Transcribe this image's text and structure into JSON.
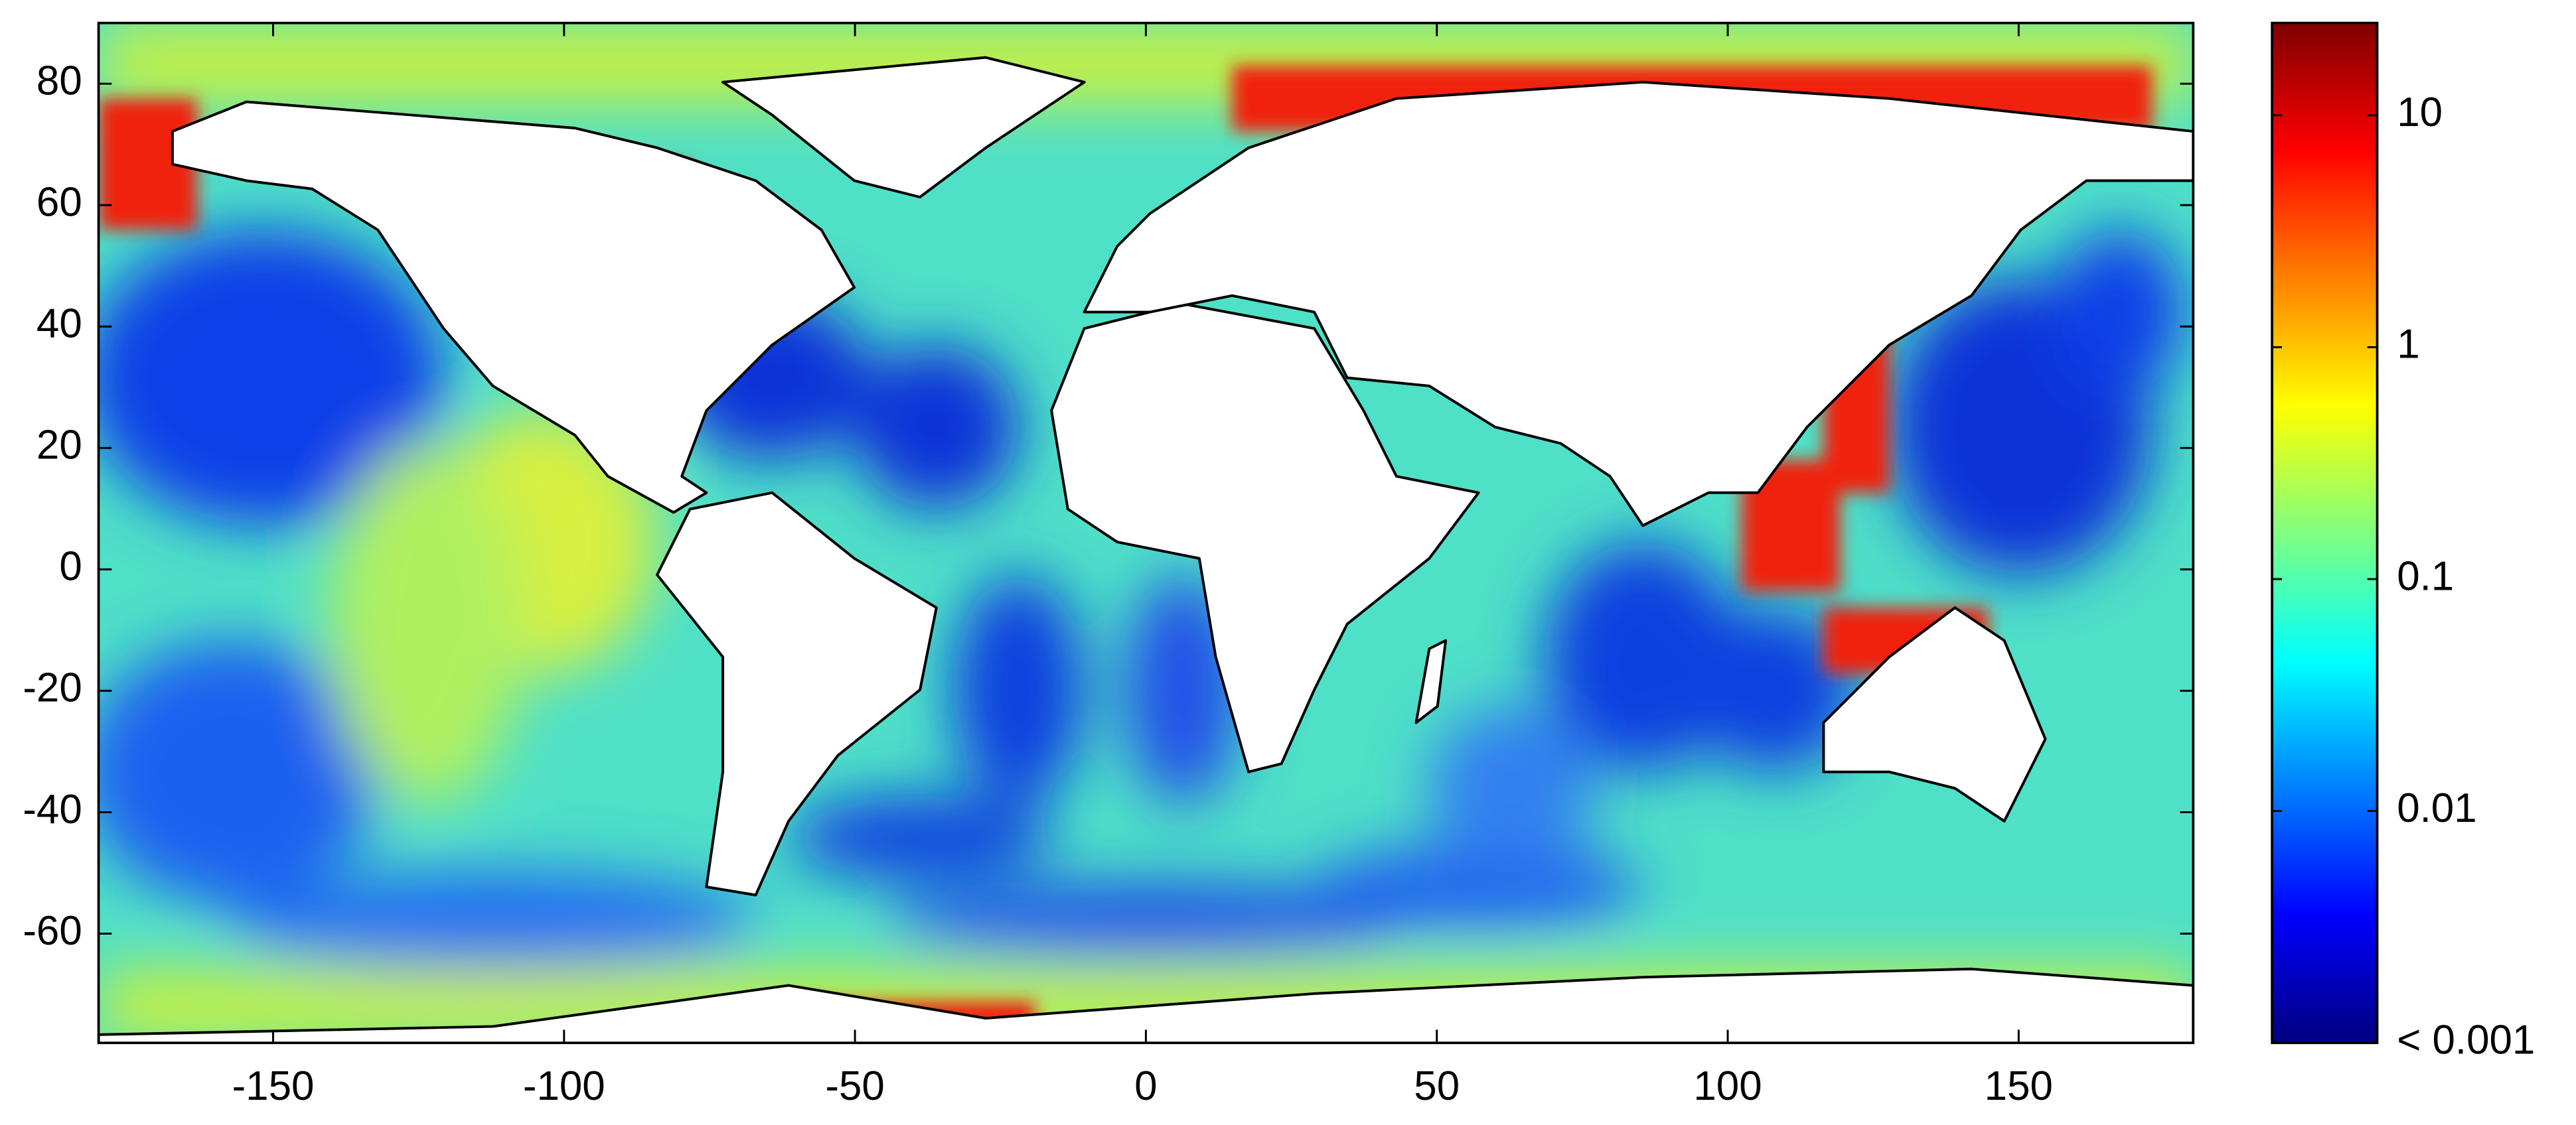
{
  "chart_data": {
    "type": "heatmap",
    "xlim": [
      -180,
      180
    ],
    "xticks": [
      -150,
      -100,
      -50,
      0,
      50,
      100,
      150
    ],
    "ylim": [
      -78,
      90
    ],
    "yticks": [
      -60,
      -40,
      -20,
      0,
      20,
      40,
      60,
      80
    ],
    "colorbar": {
      "scale": "log",
      "colormap": "jet",
      "lim": [
        0.001,
        25
      ],
      "ticks": [
        {
          "value": 0.001,
          "label": "< 0.001"
        },
        0.01,
        0.1,
        1,
        10
      ]
    }
  }
}
